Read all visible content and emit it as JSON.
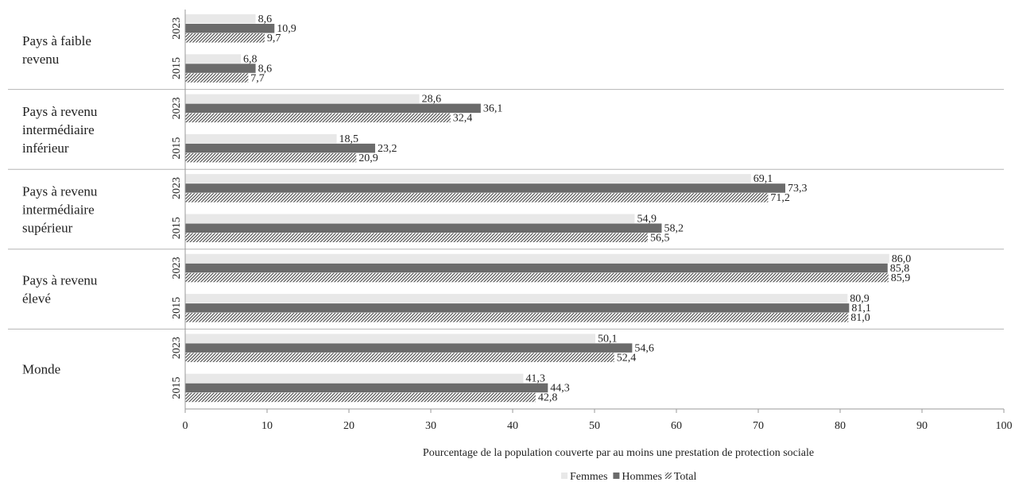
{
  "chart_data": {
    "type": "bar",
    "orientation": "horizontal",
    "xlabel": "Pourcentage de la population couverte par au moins une prestation de protection sociale",
    "xlim": [
      0,
      100
    ],
    "xticks": [
      "0",
      "10",
      "20",
      "30",
      "40",
      "50",
      "60",
      "70",
      "80",
      "90",
      "100"
    ],
    "grid": false,
    "legend_position": "bottom",
    "series": [
      {
        "name": "Femmes",
        "color": "#e8e8e8",
        "pattern": "solid-light"
      },
      {
        "name": "Hommes",
        "color": "#6b6b6b",
        "pattern": "solid-dark"
      },
      {
        "name": "Total",
        "color": "#6b6b6b",
        "pattern": "diagonal-hatch"
      }
    ],
    "groups": [
      {
        "label": [
          "Pays à faible",
          "revenu"
        ],
        "years": [
          {
            "year": "2023",
            "values": [
              8.6,
              10.9,
              9.7
            ],
            "labels": [
              "8,6",
              "10,9",
              "9,7"
            ]
          },
          {
            "year": "2015",
            "values": [
              6.8,
              8.6,
              7.7
            ],
            "labels": [
              "6,8",
              "8,6",
              "7,7"
            ]
          }
        ]
      },
      {
        "label": [
          "Pays à revenu",
          "intermédiaire",
          "inférieur"
        ],
        "years": [
          {
            "year": "2023",
            "values": [
              28.6,
              36.1,
              32.4
            ],
            "labels": [
              "28,6",
              "36,1",
              "32,4"
            ]
          },
          {
            "year": "2015",
            "values": [
              18.5,
              23.2,
              20.9
            ],
            "labels": [
              "18,5",
              "23,2",
              "20,9"
            ]
          }
        ]
      },
      {
        "label": [
          "Pays à revenu",
          "intermédiaire",
          "supérieur"
        ],
        "years": [
          {
            "year": "2023",
            "values": [
              69.1,
              73.3,
              71.2
            ],
            "labels": [
              "69,1",
              "73,3",
              "71,2"
            ]
          },
          {
            "year": "2015",
            "values": [
              54.9,
              58.2,
              56.5
            ],
            "labels": [
              "54,9",
              "58,2",
              "56,5"
            ]
          }
        ]
      },
      {
        "label": [
          "Pays à revenu",
          "élevé"
        ],
        "years": [
          {
            "year": "2023",
            "values": [
              86.0,
              85.8,
              85.9
            ],
            "labels": [
              "86,0",
              "85,8",
              "85,9"
            ]
          },
          {
            "year": "2015",
            "values": [
              80.9,
              81.1,
              81.0
            ],
            "labels": [
              "80,9",
              "81,1",
              "81,0"
            ]
          }
        ]
      },
      {
        "label": [
          "Monde"
        ],
        "years": [
          {
            "year": "2023",
            "values": [
              50.1,
              54.6,
              52.4
            ],
            "labels": [
              "50,1",
              "54,6",
              "52,4"
            ]
          },
          {
            "year": "2015",
            "values": [
              41.3,
              44.3,
              42.8
            ],
            "labels": [
              "41,3",
              "44,3",
              "42,8"
            ]
          }
        ]
      }
    ]
  }
}
